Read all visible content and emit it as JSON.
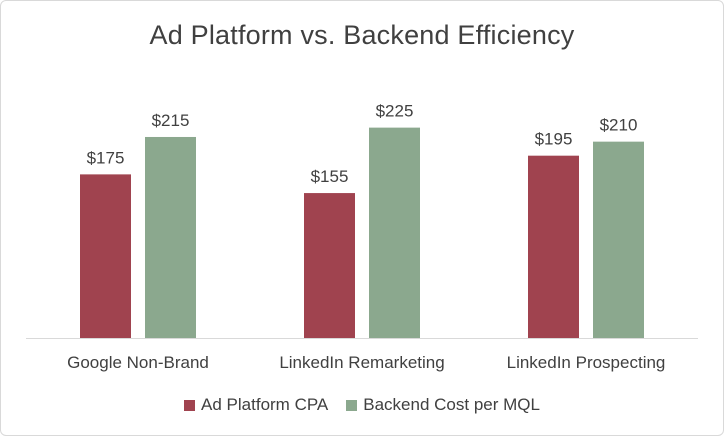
{
  "chart_data": {
    "type": "bar",
    "title": "Ad Platform vs. Backend Efficiency",
    "categories": [
      "Google Non-Brand",
      "LinkedIn Remarketing",
      "LinkedIn Prospecting"
    ],
    "series": [
      {
        "name": "Ad Platform CPA",
        "values": [
          175,
          155,
          195
        ],
        "labels": [
          "$175",
          "$155",
          "$195"
        ],
        "color": "#a0434f"
      },
      {
        "name": "Backend Cost per MQL",
        "values": [
          215,
          225,
          210
        ],
        "labels": [
          "$215",
          "$225",
          "$210"
        ],
        "color": "#8ba88e"
      }
    ],
    "ylim": [
      0,
      250
    ],
    "grid": false,
    "axis_visible": false,
    "legend": "bottom"
  }
}
